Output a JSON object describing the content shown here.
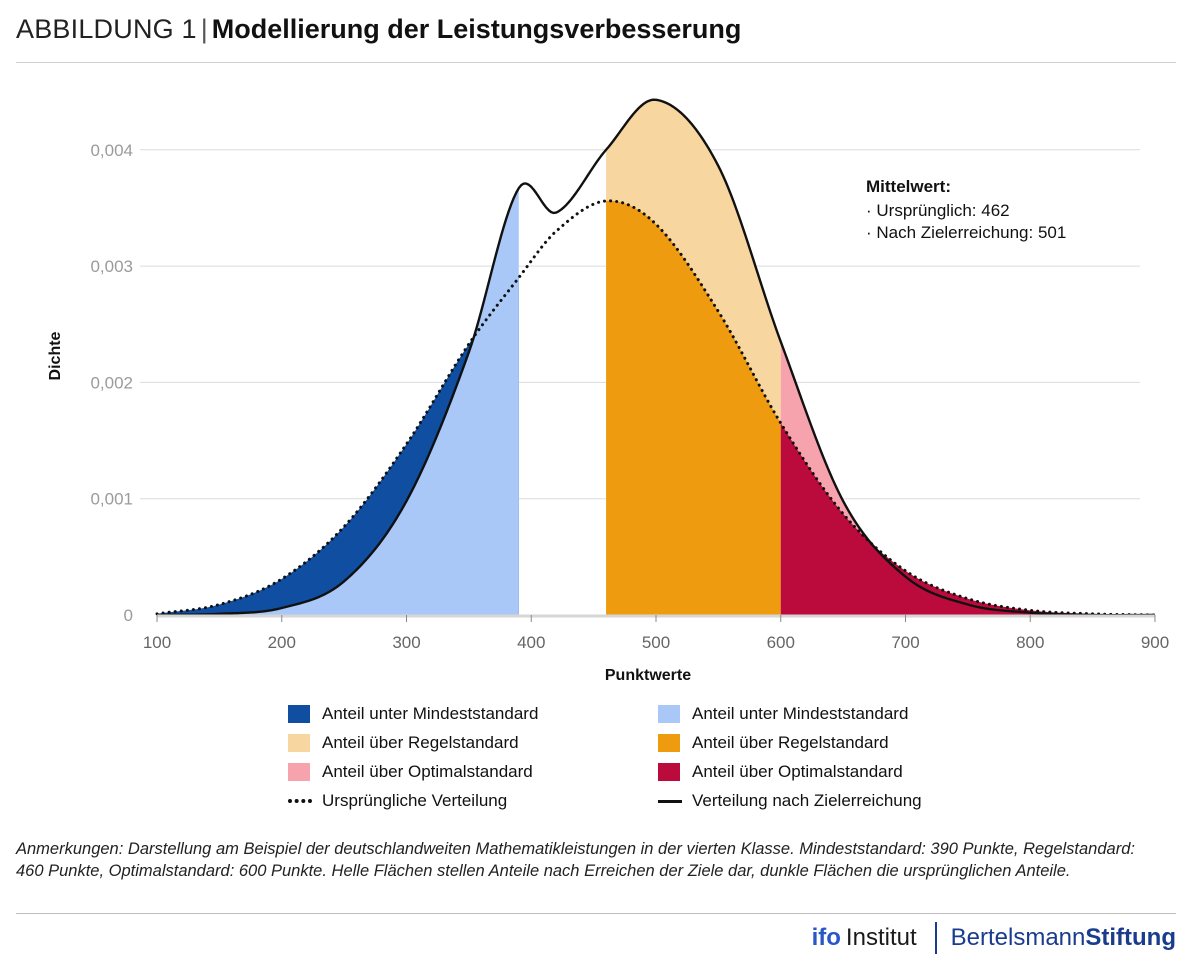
{
  "header": {
    "lead": "ABBILDUNG 1",
    "separator": "|",
    "title": "Modellierung der Leistungsverbesserung"
  },
  "chart_data": {
    "type": "area",
    "xlabel": "Punktwerte",
    "ylabel": "Dichte",
    "xlim": [
      100,
      900
    ],
    "ylim": [
      0,
      0.0046
    ],
    "x_ticks": [
      100,
      200,
      300,
      400,
      500,
      600,
      700,
      800,
      900
    ],
    "x_tick_labels": [
      "100",
      "200",
      "300",
      "400",
      "500",
      "600",
      "700",
      "800",
      "900"
    ],
    "y_ticks": [
      0,
      0.001,
      0.002,
      0.003,
      0.004
    ],
    "y_tick_labels": [
      "0",
      "0,001",
      "0,002",
      "0,003",
      "0,004"
    ],
    "grid": "horizontal",
    "thresholds": {
      "Mindeststandard": 390,
      "Regelstandard": 460,
      "Optimalstandard": 600
    },
    "series": [
      {
        "name": "Ursprüngliche Verteilung",
        "style": "dotted",
        "x": [
          100,
          150,
          200,
          250,
          300,
          350,
          390,
          420,
          460,
          500,
          550,
          600,
          650,
          700,
          750,
          800,
          850,
          900
        ],
        "y": [
          1e-05,
          9e-05,
          0.00031,
          0.00076,
          0.00147,
          0.00233,
          0.0029,
          0.0033,
          0.00356,
          0.00336,
          0.00261,
          0.00165,
          0.00087,
          0.00038,
          0.00014,
          4e-05,
          1e-05,
          0
        ]
      },
      {
        "name": "Verteilung nach Zielerreichung",
        "style": "solid",
        "x": [
          100,
          150,
          200,
          250,
          300,
          350,
          390,
          420,
          460,
          500,
          550,
          600,
          650,
          700,
          750,
          800,
          850,
          900
        ],
        "y": [
          0,
          1e-05,
          6e-05,
          0.00029,
          0.00098,
          0.00226,
          0.00367,
          0.00346,
          0.004,
          0.00443,
          0.00386,
          0.00235,
          0.00098,
          0.00033,
          9e-05,
          2e-05,
          0,
          0
        ]
      }
    ],
    "annotation": {
      "heading": "Mittelwert:",
      "lines": [
        "· Ursprünglich: 462",
        "· Nach Zielerreichung: 501"
      ]
    },
    "legend": [
      {
        "label": "Anteil unter Mindeststandard",
        "type": "swatch",
        "color": "#0f4ea1"
      },
      {
        "label": "Anteil unter Mindeststandard",
        "type": "swatch",
        "color": "#a9c8f8"
      },
      {
        "label": "Anteil über Regelstandard",
        "type": "swatch",
        "color": "#f8d6a0"
      },
      {
        "label": "Anteil über Regelstandard",
        "type": "swatch",
        "color": "#ee9b0f"
      },
      {
        "label": "Anteil über Optimalstandard",
        "type": "swatch",
        "color": "#f7a3ae"
      },
      {
        "label": "Anteil über Optimalstandard",
        "type": "swatch",
        "color": "#bb0a3c"
      },
      {
        "label": "Ursprüngliche Verteilung",
        "type": "dotted-line",
        "color": "#111111"
      },
      {
        "label": "Verteilung nach Zielerreichung",
        "type": "solid-line",
        "color": "#111111"
      }
    ],
    "colors": {
      "dark_blue": "#0f4ea1",
      "light_blue": "#a9c8f8",
      "light_orange": "#f8d6a0",
      "dark_orange": "#ee9b0f",
      "light_red": "#f7a3ae",
      "dark_red": "#bb0a3c",
      "grid": "#dcdcdc",
      "tick_text": "#9b9b9b"
    }
  },
  "notes": "Anmerkungen: Darstellung am Beispiel der deutschlandweiten Mathematikleistungen in der vierten Klasse. Mindeststandard: 390 Punkte, Regelstandard: 460 Punkte, Optimalstandard: 600 Punkte. Helle Flächen stellen Anteile nach Erreichen der Ziele dar, dunkle Flächen die ursprünglichen Anteile.",
  "footer": {
    "ifo_mark": "ifo",
    "ifo_word": "Institut",
    "bs_light": "Bertelsmann",
    "bs_bold": "Stiftung"
  }
}
